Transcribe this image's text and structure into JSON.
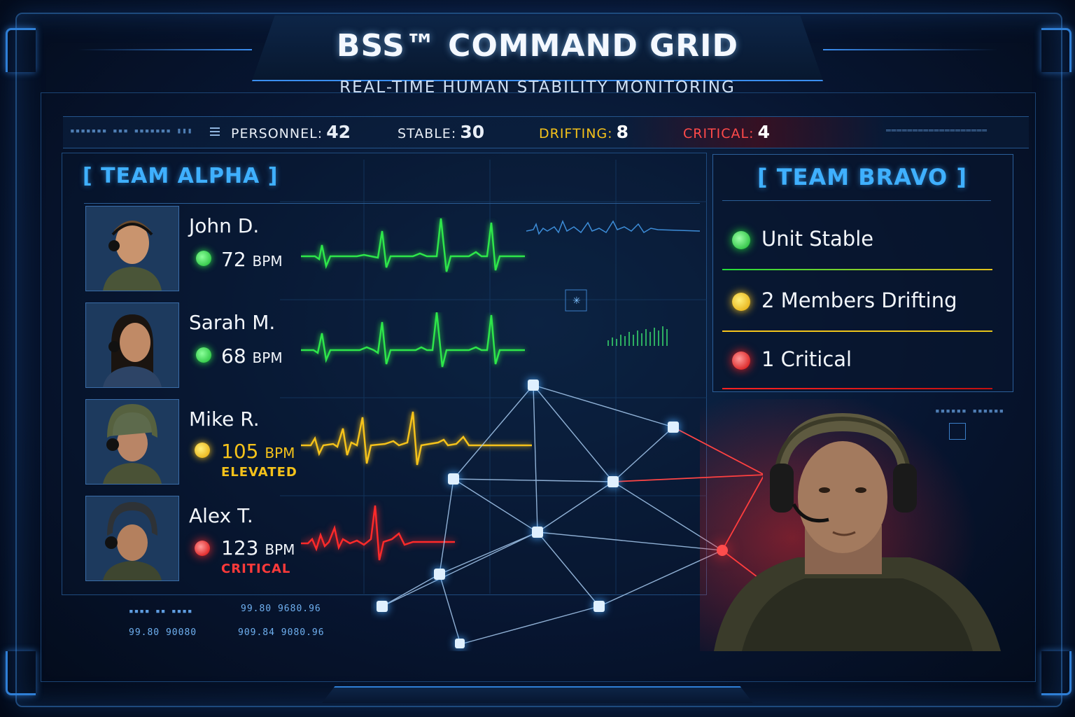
{
  "header": {
    "title": "BSS™ COMMAND GRID",
    "subtitle": "REAL-TIME HUMAN STABILITY MONITORING"
  },
  "stats": {
    "personnel_label": "PERSONNEL:",
    "personnel_value": "42",
    "stable_label": "STABLE:",
    "stable_value": "30",
    "drifting_label": "DRIFTING:",
    "drifting_value": "8",
    "critical_label": "CRITICAL:",
    "critical_value": "4"
  },
  "team_alpha": {
    "title": "[ TEAM ALPHA ]",
    "members": [
      {
        "name": "John D.",
        "bpm": "72",
        "unit": "BPM",
        "status": "",
        "color": "#2ee64a"
      },
      {
        "name": "Sarah M.",
        "bpm": "68",
        "unit": "BPM",
        "status": "",
        "color": "#2ee64a"
      },
      {
        "name": "Mike R.",
        "bpm": "105",
        "unit": "BPM",
        "status": "ELEVATED",
        "color": "#f5c21a"
      },
      {
        "name": "Alex T.",
        "bpm": "123",
        "unit": "BPM",
        "status": "CRITICAL",
        "color": "#ff2a2a"
      }
    ]
  },
  "team_bravo": {
    "title": "[ TEAM BRAVO ]",
    "items": [
      {
        "label": "Unit Stable",
        "color": "#22dd3a"
      },
      {
        "label": "2 Members Drifting",
        "color": "#f7c41c"
      },
      {
        "label": "1 Critical",
        "color": "#ff2222"
      }
    ]
  },
  "deco_readouts": [
    "99.80 9680.96",
    "99.80 90080",
    "909.84 9080.96"
  ],
  "colors": {
    "accent": "#3fb0ff",
    "stable": "#2ee64a",
    "drifting": "#f5c21a",
    "critical": "#ff2a2a"
  }
}
